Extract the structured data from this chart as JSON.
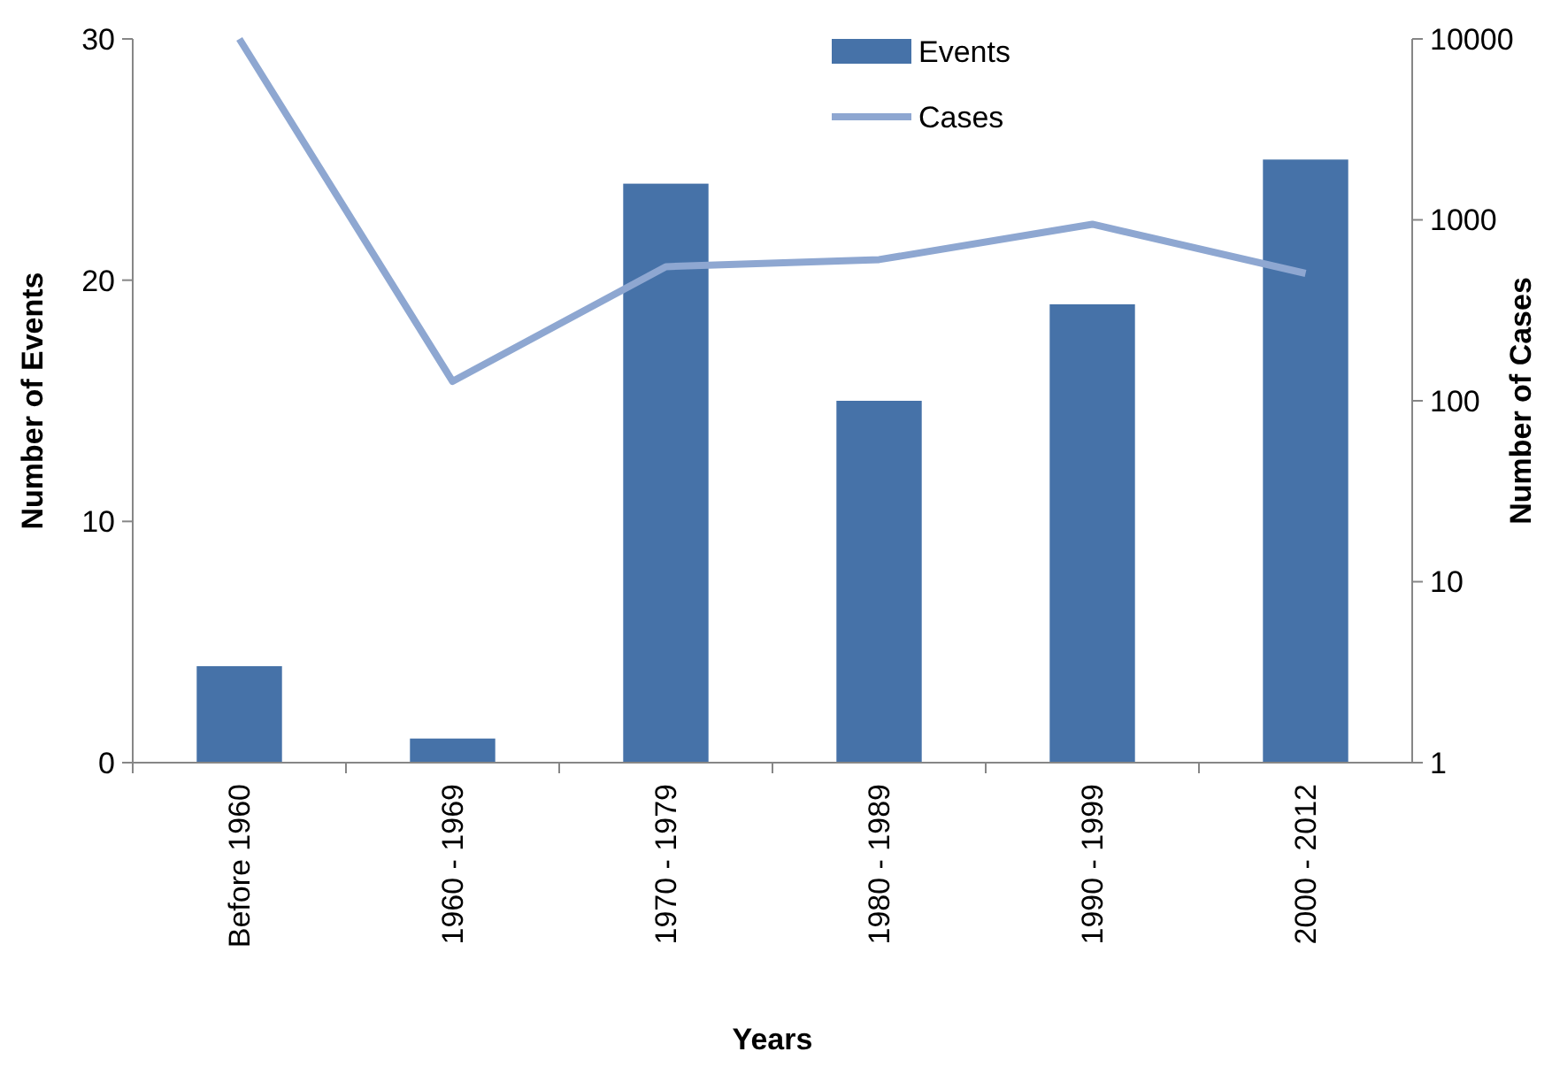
{
  "chart_data": {
    "type": "bar",
    "xlabel": "Years",
    "ylabel": "Number of Events",
    "y2label": "Number of Cases",
    "categories": [
      "Before 1960",
      "1960 - 1969",
      "1970 - 1979",
      "1980 - 1989",
      "1990 - 1999",
      "2000 - 2012"
    ],
    "series": [
      {
        "name": "Events",
        "color": "#4672a8",
        "values": [
          4,
          1,
          24,
          15,
          19,
          25
        ]
      },
      {
        "name": "Cases",
        "type": "line",
        "axis": "y2",
        "color": "#8ea7d1",
        "values": [
          10000,
          128,
          551,
          603,
          946,
          506
        ]
      }
    ],
    "ylim": [
      0,
      30
    ],
    "yticks": [
      0,
      10,
      20,
      30
    ],
    "y2lim": [
      1,
      10000
    ],
    "y2ticks": [
      1,
      10,
      100,
      1000,
      10000
    ],
    "log": "y2",
    "grid": false,
    "legend": "top",
    "marker": "none"
  }
}
